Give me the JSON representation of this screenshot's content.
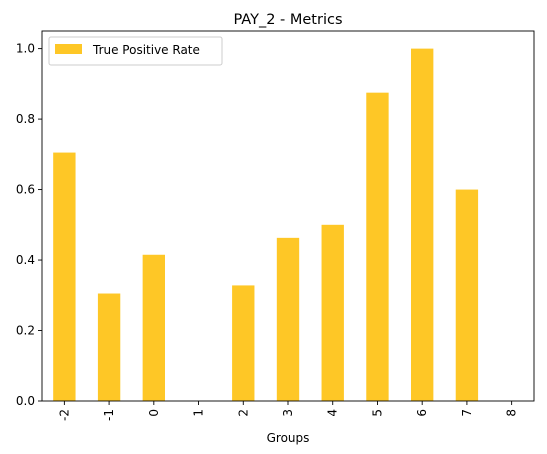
{
  "chart_data": {
    "type": "bar",
    "title": "PAY_2 - Metrics",
    "xlabel": "Groups",
    "ylabel": "",
    "categories": [
      "-2",
      "-1",
      "0",
      "1",
      "2",
      "3",
      "4",
      "5",
      "6",
      "7",
      "8"
    ],
    "series": [
      {
        "name": "True Positive Rate",
        "color": "#fec726",
        "values": [
          0.705,
          0.305,
          0.415,
          0.0,
          0.328,
          0.463,
          0.5,
          0.875,
          1.0,
          0.6,
          0.0
        ]
      }
    ],
    "ylim": [
      0,
      1.05
    ],
    "yticks": [
      "0.0",
      "0.2",
      "0.4",
      "0.6",
      "0.8",
      "1.0"
    ],
    "grid": false,
    "legend": "top-left"
  }
}
